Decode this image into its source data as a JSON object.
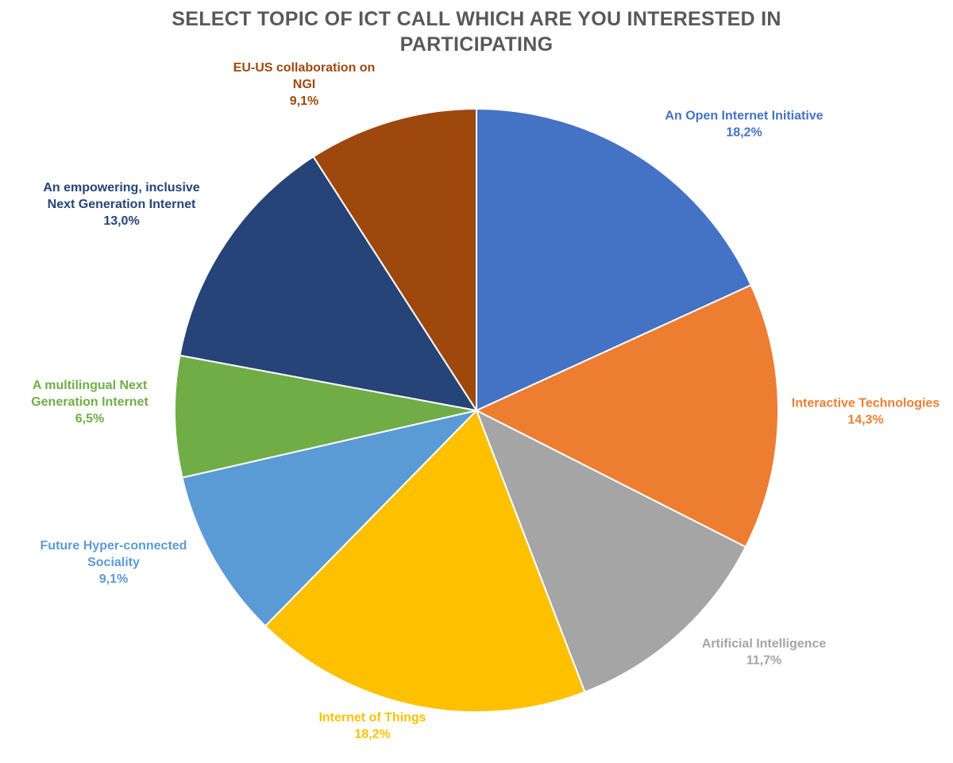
{
  "title": {
    "line1": "SELECT TOPIC OF ICT CALL WHICH ARE YOU INTERESTED IN",
    "line2": "PARTICIPATING"
  },
  "chart_data": {
    "type": "pie",
    "title": "SELECT TOPIC OF ICT CALL WHICH ARE YOU INTERESTED IN PARTICIPATING",
    "start": "12 o'clock, clockwise",
    "slices": [
      {
        "label": [
          "An Open Internet Initiative"
        ],
        "value": 18.2,
        "pct_text": "18,2%",
        "color": "#4472C4"
      },
      {
        "label": [
          "Interactive Technologies"
        ],
        "value": 14.3,
        "pct_text": "14,3%",
        "color": "#ED7D31"
      },
      {
        "label": [
          "Artificial Intelligence"
        ],
        "value": 11.7,
        "pct_text": "11,7%",
        "color": "#A5A5A5"
      },
      {
        "label": [
          "Internet of Things"
        ],
        "value": 18.2,
        "pct_text": "18,2%",
        "color": "#FFC000"
      },
      {
        "label": [
          "Future Hyper-connected",
          "Sociality"
        ],
        "value": 9.1,
        "pct_text": "9,1%",
        "color": "#5B9BD5"
      },
      {
        "label": [
          "A multilingual Next",
          "Generation Internet"
        ],
        "value": 6.5,
        "pct_text": "6,5%",
        "color": "#70AD47"
      },
      {
        "label": [
          "An empowering, inclusive",
          "Next Generation Internet"
        ],
        "value": 13.0,
        "pct_text": "13,0%",
        "color": "#264478"
      },
      {
        "label": [
          "EU-US collaboration on",
          "NGI"
        ],
        "value": 9.1,
        "pct_text": "9,1%",
        "color": "#9E480E"
      }
    ]
  }
}
